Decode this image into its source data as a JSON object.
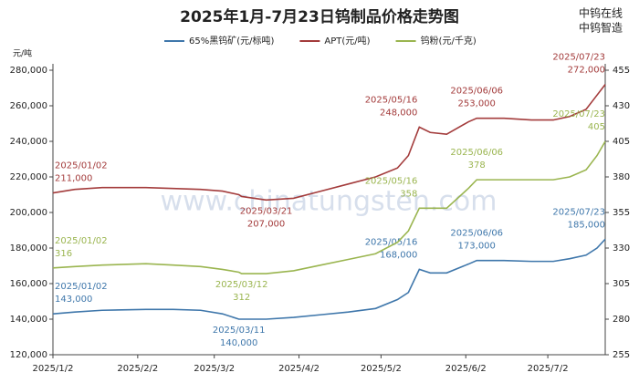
{
  "chart_data": {
    "type": "line",
    "title": "2025年1月-7月23日钨制品价格走势图",
    "brand": [
      "中钨在线",
      "中钨智造"
    ],
    "watermark": "www.chinatungsten.com",
    "y_unit": "元/吨",
    "x": [
      "2025/1/2",
      "2025/1/10",
      "2025/1/20",
      "2025/2/5",
      "2025/2/15",
      "2025/2/25",
      "2025/3/5",
      "2025/3/11",
      "2025/3/12",
      "2025/3/21",
      "2025/3/31",
      "2025/4/10",
      "2025/4/20",
      "2025/4/30",
      "2025/5/8",
      "2025/5/12",
      "2025/5/16",
      "2025/5/20",
      "2025/5/26",
      "2025/6/3",
      "2025/6/6",
      "2025/6/16",
      "2025/6/26",
      "2025/7/4",
      "2025/7/10",
      "2025/7/16",
      "2025/7/20",
      "2025/7/23"
    ],
    "xlim": [
      "2025/1/2",
      "2025/7/23"
    ],
    "xticks": [
      "2025/1/2",
      "2025/2/2",
      "2025/3/2",
      "2025/4/2",
      "2025/5/2",
      "2025/6/2",
      "2025/7/2"
    ],
    "ylim": [
      120000,
      280000
    ],
    "yticks": [
      {
        "value": 120000,
        "label": "120,000"
      },
      {
        "value": 140000,
        "label": "140,000"
      },
      {
        "value": 160000,
        "label": "160,000"
      },
      {
        "value": 180000,
        "label": "180,000"
      },
      {
        "value": 200000,
        "label": "200,000"
      },
      {
        "value": 220000,
        "label": "220,000"
      },
      {
        "value": 240000,
        "label": "240,000"
      },
      {
        "value": 260000,
        "label": "260,000"
      },
      {
        "value": 280000,
        "label": "280,000"
      }
    ],
    "y2lim": [
      255,
      455
    ],
    "y2ticks": [
      255,
      280,
      305,
      330,
      355,
      380,
      405,
      430,
      455
    ],
    "legend": "top",
    "series": [
      {
        "name": "65%黑钨矿(元/标吨)",
        "color": "#3f77ab",
        "values": [
          143000,
          144000,
          145000,
          145500,
          145500,
          145000,
          143000,
          140000,
          140000,
          140000,
          141000,
          142500,
          144000,
          146000,
          151000,
          155000,
          168000,
          166000,
          166000,
          171000,
          173000,
          173000,
          172500,
          172500,
          174000,
          176000,
          180000,
          185000
        ],
        "point_labels": [
          "2025/01/02",
          null,
          null,
          null,
          null,
          null,
          null,
          "2025/03/11",
          null,
          null,
          null,
          null,
          null,
          null,
          null,
          null,
          "2025/05/16",
          null,
          null,
          null,
          "2025/06/06",
          null,
          null,
          null,
          null,
          null,
          null,
          "2025/07/23"
        ],
        "value_labels": [
          "143,000",
          null,
          null,
          null,
          null,
          null,
          null,
          "140,000",
          null,
          null,
          null,
          null,
          null,
          null,
          null,
          null,
          "168,000",
          null,
          null,
          null,
          "173,000",
          null,
          null,
          null,
          null,
          null,
          null,
          "185,000"
        ]
      },
      {
        "name": "APT(元/吨)",
        "color": "#a33b3b",
        "values": [
          211000,
          213000,
          214000,
          214000,
          213500,
          213000,
          212000,
          210000,
          209000,
          207000,
          208000,
          212000,
          216000,
          220000,
          225000,
          232000,
          248000,
          245000,
          244000,
          251000,
          253000,
          253000,
          252000,
          252000,
          254000,
          258000,
          266000,
          272000
        ],
        "point_labels": [
          "2025/01/02",
          null,
          null,
          null,
          null,
          null,
          null,
          null,
          null,
          "2025/03/21",
          null,
          null,
          null,
          null,
          null,
          null,
          "2025/05/16",
          null,
          null,
          null,
          "2025/06/06",
          null,
          null,
          null,
          null,
          null,
          null,
          "2025/07/23"
        ],
        "value_labels": [
          "211,000",
          null,
          null,
          null,
          null,
          null,
          null,
          null,
          null,
          "207,000",
          null,
          null,
          null,
          null,
          null,
          null,
          "248,000",
          null,
          null,
          null,
          "253,000",
          null,
          null,
          null,
          null,
          null,
          null,
          "272,000"
        ]
      },
      {
        "name": "钨粉(元/千克)",
        "color": "#9ab54f",
        "axis": "y2",
        "values": [
          316,
          317,
          318,
          319,
          318,
          317,
          315,
          313,
          312,
          312,
          314,
          318,
          322,
          326,
          334,
          342,
          358,
          358,
          358,
          372,
          378,
          378,
          378,
          378,
          380,
          385,
          395,
          405
        ],
        "point_labels": [
          "2025/01/02",
          null,
          null,
          null,
          null,
          null,
          null,
          null,
          "2025/03/12",
          null,
          null,
          null,
          null,
          null,
          null,
          null,
          "2025/05/16",
          null,
          null,
          null,
          "2025/06/06",
          null,
          null,
          null,
          null,
          null,
          null,
          "2025/07/23"
        ],
        "value_labels": [
          "316",
          null,
          null,
          null,
          null,
          null,
          null,
          null,
          "312",
          null,
          null,
          null,
          null,
          null,
          null,
          null,
          "358",
          null,
          null,
          null,
          "378",
          null,
          null,
          null,
          null,
          null,
          null,
          "405"
        ]
      }
    ]
  }
}
